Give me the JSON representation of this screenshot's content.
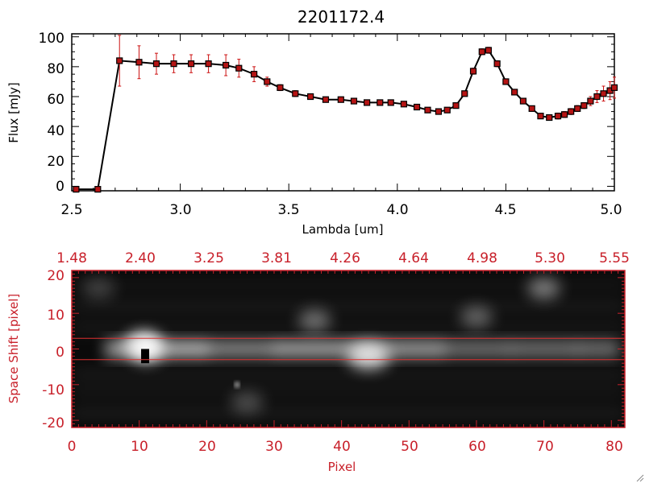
{
  "colors": {
    "ink": "#000000",
    "accent_red": "#c8202a",
    "error_bar": "#cc1111",
    "marker_fill": "#b51414",
    "band_line": "#e03030"
  },
  "chart_data": [
    {
      "type": "line",
      "title": "2201172.4",
      "xlabel": "Lambda [um]",
      "ylabel": "Flux [mJy]",
      "xlim": [
        2.5,
        5.0
      ],
      "ylim": [
        -3,
        102
      ],
      "xticks": [
        "2.5",
        "3.0",
        "3.5",
        "4.0",
        "4.5",
        "5.0"
      ],
      "yticks": [
        "0",
        "20",
        "40",
        "60",
        "80",
        "100"
      ],
      "series": [
        {
          "x": [
            2.52,
            2.62,
            2.72,
            2.81,
            2.89,
            2.97,
            3.05,
            3.13,
            3.21,
            3.27,
            3.34,
            3.4,
            3.46,
            3.53,
            3.6,
            3.67,
            3.74,
            3.8,
            3.86,
            3.92,
            3.97,
            4.03,
            4.09,
            4.14,
            4.19,
            4.23,
            4.27,
            4.31,
            4.35,
            4.39,
            4.42,
            4.46,
            4.5,
            4.54,
            4.58,
            4.62,
            4.66,
            4.7,
            4.74,
            4.77,
            4.8,
            4.83,
            4.86,
            4.89,
            4.92,
            4.95,
            4.98,
            5.0
          ],
          "y": [
            -2,
            -2,
            84,
            83,
            82,
            82,
            82,
            82,
            81,
            79,
            75,
            70,
            66,
            62,
            60,
            58,
            58,
            57,
            56,
            56,
            56,
            55,
            53,
            51,
            50,
            51,
            54,
            62,
            77,
            90,
            91,
            82,
            70,
            63,
            57,
            52,
            47,
            46,
            47,
            48,
            50,
            52,
            54,
            57,
            60,
            62,
            64,
            66
          ],
          "yerr": [
            0,
            0,
            17,
            11,
            7,
            6,
            6,
            6,
            7,
            6,
            5,
            3,
            2,
            2,
            1,
            1,
            1,
            1,
            1,
            1,
            1,
            1,
            1,
            1,
            1,
            1,
            1,
            1,
            2,
            2,
            2,
            2,
            1,
            1,
            1,
            1,
            1,
            1,
            2,
            2,
            2,
            2,
            2,
            3,
            4,
            5,
            6,
            7
          ]
        }
      ]
    },
    {
      "type": "heatmap",
      "xlabel": "Pixel",
      "ylabel": "Space Shift [pixel]",
      "xlim": [
        0,
        82
      ],
      "ylim": [
        -22,
        22
      ],
      "xticks": [
        "0",
        "10",
        "20",
        "30",
        "40",
        "50",
        "60",
        "70",
        "80"
      ],
      "yticks": [
        "-20",
        "-10",
        "0",
        "10",
        "20"
      ],
      "top_axis_ticks": [
        "1.48",
        "2.40",
        "3.25",
        "3.81",
        "4.26",
        "4.64",
        "4.98",
        "5.30",
        "5.55"
      ],
      "extraction_band": [
        -3,
        3
      ],
      "trace": [
        {
          "x": 5,
          "brightness": 0.45
        },
        {
          "x": 11,
          "brightness": 1.0
        },
        {
          "x": 20,
          "brightness": 0.6
        },
        {
          "x": 30,
          "brightness": 0.55
        },
        {
          "x": 44,
          "brightness": 0.85
        },
        {
          "x": 55,
          "brightness": 0.5
        },
        {
          "x": 65,
          "brightness": 0.45
        },
        {
          "x": 75,
          "brightness": 0.5
        },
        {
          "x": 81,
          "brightness": 0.45
        }
      ],
      "blobs": [
        {
          "x": 10,
          "y": 1.5,
          "brightness": 0.45
        },
        {
          "x": 36,
          "y": 8,
          "brightness": 0.4
        },
        {
          "x": 60,
          "y": 9,
          "brightness": 0.35
        },
        {
          "x": 70,
          "y": 17,
          "brightness": 0.45
        },
        {
          "x": 4,
          "y": 17,
          "brightness": 0.2
        },
        {
          "x": 26,
          "y": -15,
          "brightness": 0.25
        }
      ],
      "dead_pixel": {
        "x": 11,
        "y": -2,
        "value": 0
      }
    }
  ]
}
